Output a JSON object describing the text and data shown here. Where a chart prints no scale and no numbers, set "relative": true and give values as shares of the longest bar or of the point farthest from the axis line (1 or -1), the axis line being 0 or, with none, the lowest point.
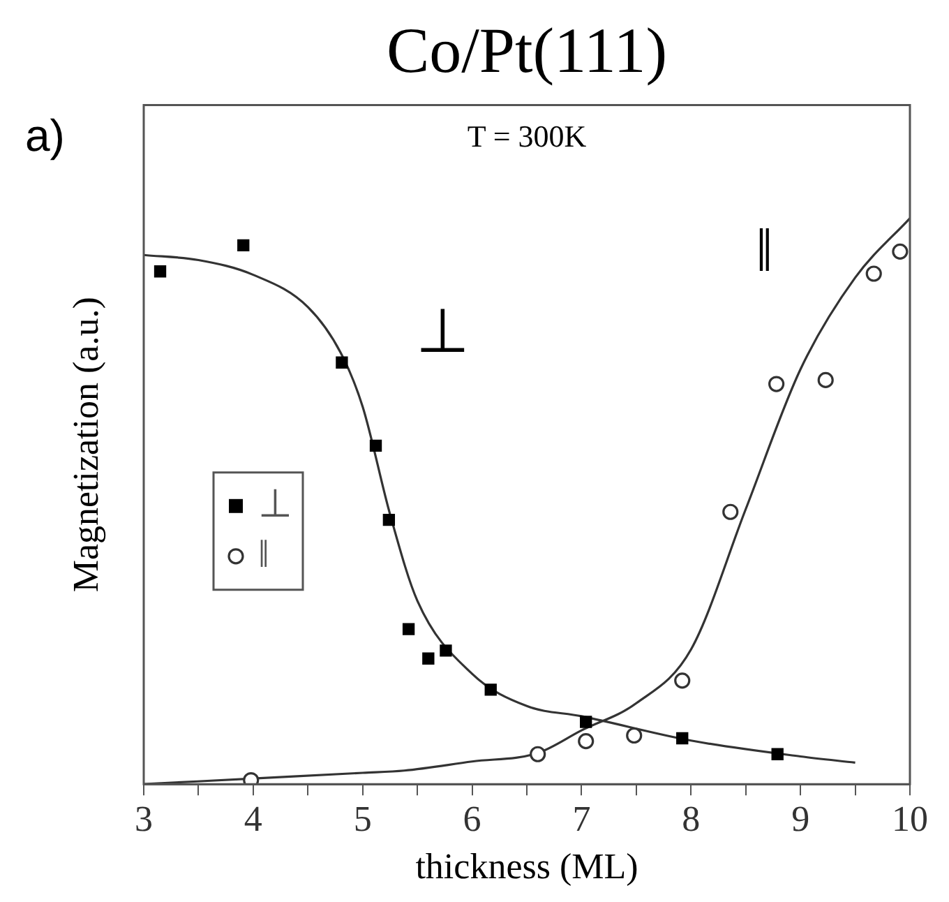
{
  "chart_data": {
    "type": "scatter",
    "title": "Co/Pt(111)",
    "xlabel": "thickness (ML)",
    "ylabel": "Magnetization (a.u.)",
    "relative": true,
    "annotations": [
      "a)",
      "T = 300K",
      "⊥",
      "‖"
    ],
    "xlim": [
      3,
      10
    ],
    "xticks": [
      3,
      {
        "value": 3.5,
        "label": null
      },
      4,
      {
        "value": 4.5,
        "label": null
      },
      5,
      {
        "value": 5.5,
        "label": null
      },
      6,
      {
        "value": 6.5,
        "label": null
      },
      7,
      {
        "value": 7.5,
        "label": null
      },
      8,
      {
        "value": 8.5,
        "label": null
      },
      9,
      {
        "value": 9.5,
        "label": null
      },
      10
    ],
    "grid": false,
    "legend": "left",
    "series": [
      {
        "name": "⊥",
        "type": "scatter",
        "marker": "square",
        "color": "#000000",
        "x": [
          3.15,
          3.91,
          4.81,
          5.12,
          5.24,
          5.42,
          5.6,
          5.76,
          6.17,
          7.04,
          7.92,
          8.79
        ],
        "values": [
          0.906,
          0.952,
          0.745,
          0.598,
          0.467,
          0.274,
          0.222,
          0.236,
          0.167,
          0.11,
          0.081,
          0.053
        ]
      },
      {
        "name": "‖",
        "type": "scatter",
        "marker": "circle",
        "color": "#333333",
        "x": [
          3.98,
          6.6,
          7.04,
          7.48,
          7.92,
          8.36,
          8.78,
          9.23,
          9.67,
          9.91
        ],
        "values": [
          0.007,
          0.053,
          0.076,
          0.086,
          0.183,
          0.481,
          0.707,
          0.714,
          0.902,
          0.941
        ]
      },
      {
        "type": "line",
        "marker": "none",
        "color": "#333333",
        "x": [
          3,
          3.5,
          4,
          4.5,
          4.8,
          5,
          5.25,
          5.5,
          6,
          6.5,
          7,
          8,
          9,
          9.5
        ],
        "values": [
          0.935,
          0.926,
          0.9,
          0.843,
          0.762,
          0.667,
          0.477,
          0.324,
          0.195,
          0.138,
          0.12,
          0.077,
          0.049,
          0.038
        ]
      },
      {
        "type": "line",
        "marker": "none",
        "color": "#333333",
        "x": [
          3,
          4,
          5,
          5.38,
          6,
          6.6,
          7,
          7.5,
          8,
          8.5,
          9,
          9.5,
          10
        ],
        "values": [
          0,
          0.01,
          0.02,
          0.024,
          0.04,
          0.055,
          0.095,
          0.143,
          0.238,
          0.486,
          0.733,
          0.895,
          1.0
        ]
      }
    ]
  }
}
